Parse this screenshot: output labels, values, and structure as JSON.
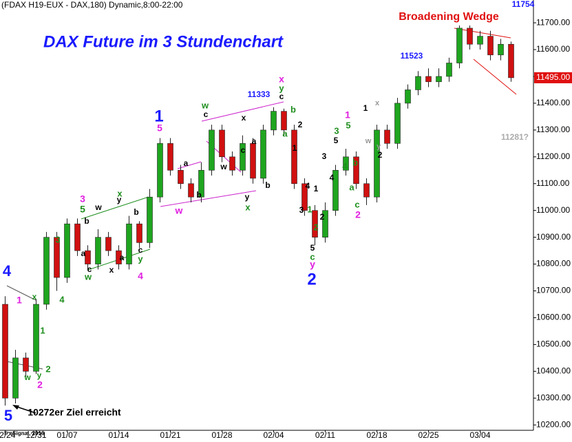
{
  "chart_data": {
    "type": "candlestick",
    "header": "(FDAX H19-EUX - DAX,180) Dynamic,8:00-22:00",
    "title": "DAX Future im 3 Stundenchart",
    "categories": [
      "12/24",
      null,
      null,
      "12/31",
      null,
      null,
      "01/07",
      null,
      null,
      null,
      null,
      "01/14",
      null,
      null,
      null,
      null,
      "01/21",
      null,
      null,
      null,
      null,
      "01/28",
      null,
      null,
      null,
      null,
      "02/04",
      null,
      null,
      null,
      null,
      "02/11",
      null,
      null,
      null,
      null,
      "02/18",
      null,
      null,
      null,
      null,
      "02/25",
      null,
      null,
      null,
      null,
      "03/04",
      null,
      null,
      null
    ],
    "open": [
      10650,
      10300,
      10450,
      10400,
      10650,
      10900,
      10750,
      10950,
      10850,
      10800,
      10900,
      10850,
      10800,
      10950,
      10880,
      11050,
      11250,
      11150,
      11100,
      11050,
      11150,
      11300,
      11200,
      11150,
      11250,
      11120,
      11300,
      11370,
      11300,
      11100,
      11000,
      10900,
      11000,
      11150,
      11200,
      11100,
      11050,
      11300,
      11250,
      11400,
      11450,
      11500,
      11480,
      11500,
      11550,
      11680,
      11620,
      11650,
      11580,
      11620
    ],
    "high": [
      10680,
      10480,
      10470,
      10670,
      10920,
      10920,
      10970,
      10970,
      10870,
      10930,
      10920,
      10870,
      10980,
      10960,
      11080,
      11270,
      11270,
      11170,
      11120,
      11180,
      11320,
      11320,
      11220,
      11280,
      11270,
      11320,
      11385,
      11380,
      11320,
      11120,
      11020,
      11030,
      11170,
      11230,
      11220,
      11120,
      11320,
      11320,
      11420,
      11470,
      11520,
      11530,
      11530,
      11570,
      11690,
      11690,
      11670,
      11670,
      11640,
      11630
    ],
    "low": [
      10272,
      10280,
      10380,
      10390,
      10630,
      10700,
      10730,
      10830,
      10780,
      10780,
      10830,
      10780,
      10780,
      10860,
      10860,
      11030,
      11130,
      11080,
      11030,
      11030,
      11130,
      11180,
      11130,
      11130,
      11100,
      11100,
      11280,
      11280,
      11080,
      10980,
      10870,
      10880,
      10980,
      11130,
      11080,
      11020,
      11030,
      11230,
      11230,
      11380,
      11430,
      11460,
      11460,
      11480,
      11530,
      11600,
      11600,
      11560,
      11560,
      11480
    ],
    "close": [
      10300,
      10450,
      10400,
      10650,
      10900,
      10750,
      10950,
      10850,
      10800,
      10900,
      10850,
      10800,
      10950,
      10880,
      11050,
      11250,
      11150,
      11100,
      11050,
      11150,
      11300,
      11200,
      11150,
      11250,
      11120,
      11300,
      11370,
      11300,
      11100,
      11000,
      10900,
      11000,
      11150,
      11200,
      11100,
      11050,
      11300,
      11250,
      11400,
      11450,
      11500,
      11480,
      11500,
      11550,
      11680,
      11620,
      11650,
      11580,
      11620,
      11495
    ],
    "up_color": "#1fa51f",
    "down_color": "#d01010",
    "ylim": [
      10180,
      11785
    ],
    "yticks": [
      {
        "value": 10200,
        "label": "10200.00"
      },
      {
        "value": 10300,
        "label": "10300.00"
      },
      {
        "value": 10400,
        "label": "10400.00"
      },
      {
        "value": 10500,
        "label": "10500.00"
      },
      {
        "value": 10600,
        "label": "10600.00"
      },
      {
        "value": 10700,
        "label": "10700.00"
      },
      {
        "value": 10800,
        "label": "10800.00"
      },
      {
        "value": 10900,
        "label": "10900.00"
      },
      {
        "value": 11000,
        "label": "11000.00"
      },
      {
        "value": 11100,
        "label": "11100.00"
      },
      {
        "value": 11200,
        "label": "11200.00"
      },
      {
        "value": 11300,
        "label": "11300.00"
      },
      {
        "value": 11400,
        "label": "11400.00"
      },
      {
        "value": 11500,
        "label": "11500.00"
      },
      {
        "value": 11600,
        "label": "11600.00"
      },
      {
        "value": 11700,
        "label": "11700.00"
      }
    ],
    "last_price": {
      "value": 11495,
      "label": "11495.00"
    },
    "annotations": [
      {
        "text": "4",
        "color": "#1a1aff"
      },
      {
        "text": "5",
        "color": "#1a1aff"
      },
      {
        "text": "1",
        "color": "#e020e0"
      },
      {
        "text": "x",
        "color": "#1f8f1f"
      },
      {
        "text": "4",
        "color": "#1f8f1f"
      },
      {
        "text": "1",
        "color": "#1f8f1f"
      },
      {
        "text": "w",
        "color": "#1f8f1f"
      },
      {
        "text": "y",
        "color": "#1f8f1f"
      },
      {
        "text": "2",
        "color": "#1f8f1f"
      },
      {
        "text": "2",
        "color": "#e020e0"
      },
      {
        "text": "3",
        "color": "#1f8f1f"
      },
      {
        "text": "3",
        "color": "#e020e0"
      },
      {
        "text": "5",
        "color": "#1f8f1f"
      },
      {
        "text": "w",
        "color": "#000000"
      },
      {
        "text": "b",
        "color": "#000000"
      },
      {
        "text": "a",
        "color": "#000000"
      },
      {
        "text": "c",
        "color": "#000000"
      },
      {
        "text": "w",
        "color": "#1f8f1f"
      },
      {
        "text": "x",
        "color": "#000000"
      },
      {
        "text": "x",
        "color": "#1f8f1f"
      },
      {
        "text": "y",
        "color": "#000000"
      },
      {
        "text": "a",
        "color": "#000000"
      },
      {
        "text": "b",
        "color": "#000000"
      },
      {
        "text": "c",
        "color": "#000000"
      },
      {
        "text": "y",
        "color": "#1f8f1f"
      },
      {
        "text": "4",
        "color": "#e020e0"
      },
      {
        "text": "1",
        "color": "#1a1aff"
      },
      {
        "text": "5",
        "color": "#e020e0"
      },
      {
        "text": "a",
        "color": "#000000"
      },
      {
        "text": "b",
        "color": "#000000"
      },
      {
        "text": "w",
        "color": "#e020e0"
      },
      {
        "text": "w",
        "color": "#1f8f1f"
      },
      {
        "text": "c",
        "color": "#000000"
      },
      {
        "text": "w",
        "color": "#000000"
      },
      {
        "text": "x",
        "color": "#000000"
      },
      {
        "text": "a",
        "color": "#000000"
      },
      {
        "text": "c",
        "color": "#000000"
      },
      {
        "text": "b",
        "color": "#000000"
      },
      {
        "text": "y",
        "color": "#000000"
      },
      {
        "text": "x",
        "color": "#1f8f1f"
      },
      {
        "text": "11333",
        "color": "#1a1aff"
      },
      {
        "text": "x",
        "color": "#e020e0"
      },
      {
        "text": "y",
        "color": "#1f8f1f"
      },
      {
        "text": "c",
        "color": "#000000"
      },
      {
        "text": "b",
        "color": "#1f8f1f"
      },
      {
        "text": "2",
        "color": "#000000"
      },
      {
        "text": "a",
        "color": "#1f8f1f"
      },
      {
        "text": "1",
        "color": "#000000"
      },
      {
        "text": "4",
        "color": "#000000"
      },
      {
        "text": "1",
        "color": "#000000"
      },
      {
        "text": "3",
        "color": "#000000"
      },
      {
        "text": "1",
        "color": "#1f8f1f"
      },
      {
        "text": "2",
        "color": "#000000"
      },
      {
        "text": "2",
        "color": "#1f8f1f"
      },
      {
        "text": "5",
        "color": "#000000"
      },
      {
        "text": "c",
        "color": "#1f8f1f"
      },
      {
        "text": "y",
        "color": "#e020e0"
      },
      {
        "text": "2",
        "color": "#1a1aff"
      },
      {
        "text": "3",
        "color": "#000000"
      },
      {
        "text": "4",
        "color": "#000000"
      },
      {
        "text": "5",
        "color": "#000000"
      },
      {
        "text": "3",
        "color": "#1f8f1f"
      },
      {
        "text": "4",
        "color": "#1f8f1f"
      },
      {
        "text": "1",
        "color": "#e020e0"
      },
      {
        "text": "5",
        "color": "#1f8f1f"
      },
      {
        "text": "b",
        "color": "#1f8f1f"
      },
      {
        "text": "a",
        "color": "#1f8f1f"
      },
      {
        "text": "c",
        "color": "#1f8f1f"
      },
      {
        "text": "2",
        "color": "#e020e0"
      },
      {
        "text": "1",
        "color": "#000000"
      },
      {
        "text": "x",
        "color": "#999999"
      },
      {
        "text": "w",
        "color": "#999999"
      },
      {
        "text": "y",
        "color": "#999999"
      },
      {
        "text": "2",
        "color": "#000000"
      },
      {
        "text": "11523",
        "color": "#1a1aff"
      },
      {
        "text": "11281?",
        "color": "#aaaaaa"
      },
      {
        "text": "11754",
        "color": "#1a1aff"
      },
      {
        "text": "Broadening Wedge",
        "color": "#e01010"
      },
      {
        "text": "10272er Ziel erreicht",
        "color": "#000000"
      },
      {
        "text": "© eSignal, 2016",
        "color": "#000000"
      }
    ]
  }
}
